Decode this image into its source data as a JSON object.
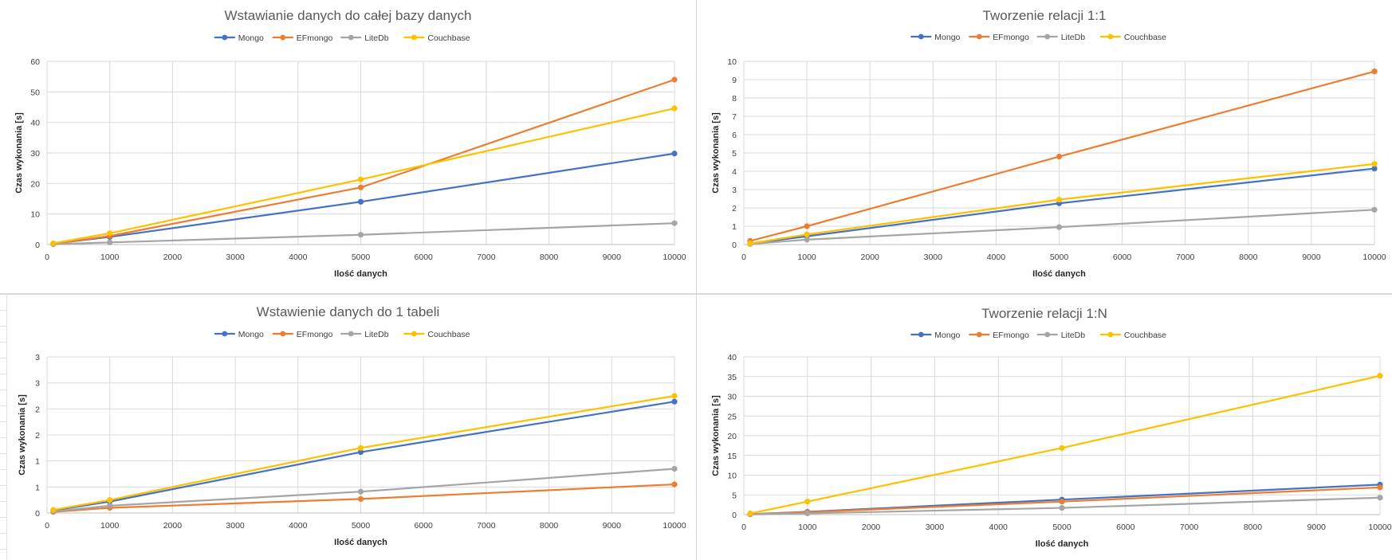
{
  "chart_data": [
    {
      "type": "line",
      "title": "Wstawianie danych do całej bazy danych",
      "xlabel": "Ilość danych",
      "ylabel": "Czas wykonania [s]",
      "x": [
        100,
        1000,
        5000,
        10000
      ],
      "x_ticks": [
        "0",
        "1000",
        "2000",
        "3000",
        "4000",
        "5000",
        "6000",
        "7000",
        "8000",
        "9000",
        "10000"
      ],
      "xlim": [
        0,
        10000
      ],
      "ylim": [
        0,
        60
      ],
      "y_ticks": [
        "0",
        "10",
        "20",
        "30",
        "40",
        "50",
        "60"
      ],
      "grid": true,
      "legend_position": "top",
      "series": [
        {
          "name": "Mongo",
          "color": "#4472C4",
          "values": [
            0.3,
            2.5,
            14,
            29.8
          ]
        },
        {
          "name": "EFmongo",
          "color": "#ED7D31",
          "values": [
            0.3,
            2.8,
            18.7,
            54
          ]
        },
        {
          "name": "LiteDb",
          "color": "#A5A5A5",
          "values": [
            0.1,
            0.7,
            3.2,
            7
          ]
        },
        {
          "name": "Couchbase",
          "color": "#FFC000",
          "values": [
            0.4,
            3.7,
            21.3,
            44.6
          ]
        }
      ]
    },
    {
      "type": "line",
      "title": "Tworzenie relacji 1:1",
      "xlabel": "Ilość danych",
      "ylabel": "Czas wykonania [s]",
      "x": [
        100,
        1000,
        5000,
        10000
      ],
      "x_ticks": [
        "0",
        "1000",
        "2000",
        "3000",
        "4000",
        "5000",
        "6000",
        "7000",
        "8000",
        "9000",
        "10000"
      ],
      "xlim": [
        0,
        10000
      ],
      "ylim": [
        0,
        10
      ],
      "y_ticks": [
        "0",
        "1",
        "2",
        "3",
        "4",
        "5",
        "6",
        "7",
        "8",
        "9",
        "10"
      ],
      "grid": true,
      "legend_position": "top",
      "series": [
        {
          "name": "Mongo",
          "color": "#4472C4",
          "values": [
            0.05,
            0.45,
            2.25,
            4.15
          ]
        },
        {
          "name": "EFmongo",
          "color": "#ED7D31",
          "values": [
            0.2,
            1.0,
            4.8,
            9.45
          ]
        },
        {
          "name": "LiteDb",
          "color": "#A5A5A5",
          "values": [
            0.03,
            0.27,
            0.95,
            1.9
          ]
        },
        {
          "name": "Couchbase",
          "color": "#FFC000",
          "values": [
            0.06,
            0.55,
            2.45,
            4.4
          ]
        }
      ]
    },
    {
      "type": "line",
      "title": "Wstawienie danych do 1 tabeli",
      "xlabel": "Ilość danych",
      "ylabel": "Czas wykonania [s]",
      "x": [
        100,
        1000,
        5000,
        10000
      ],
      "x_ticks": [
        "0",
        "1000",
        "2000",
        "3000",
        "4000",
        "5000",
        "6000",
        "7000",
        "8000",
        "9000",
        "10000"
      ],
      "xlim": [
        0,
        10000
      ],
      "ylim": [
        0,
        3
      ],
      "y_ticks": [
        "0",
        "1",
        "1",
        "2",
        "2",
        "3",
        "3"
      ],
      "grid": true,
      "legend_position": "top",
      "series": [
        {
          "name": "Mongo",
          "color": "#4472C4",
          "values": [
            0.05,
            0.22,
            1.17,
            2.14
          ]
        },
        {
          "name": "EFmongo",
          "color": "#ED7D31",
          "values": [
            0.02,
            0.1,
            0.27,
            0.55
          ]
        },
        {
          "name": "LiteDb",
          "color": "#A5A5A5",
          "values": [
            0.03,
            0.14,
            0.41,
            0.85
          ]
        },
        {
          "name": "Couchbase",
          "color": "#FFC000",
          "values": [
            0.06,
            0.25,
            1.25,
            2.25
          ]
        }
      ]
    },
    {
      "type": "line",
      "title": "Tworzenie relacji 1:N",
      "xlabel": "Ilość danych",
      "ylabel": "Czas wykonania [s]",
      "x": [
        100,
        1000,
        5000,
        10000
      ],
      "x_ticks": [
        "0",
        "1000",
        "2000",
        "3000",
        "4000",
        "5000",
        "6000",
        "7000",
        "8000",
        "9000",
        "10000"
      ],
      "xlim": [
        0,
        10000
      ],
      "ylim": [
        0,
        40
      ],
      "y_ticks": [
        "0",
        "5",
        "10",
        "15",
        "20",
        "25",
        "30",
        "35",
        "40"
      ],
      "grid": true,
      "legend_position": "top",
      "series": [
        {
          "name": "Mongo",
          "color": "#4472C4",
          "values": [
            0.1,
            0.7,
            3.8,
            7.6
          ]
        },
        {
          "name": "EFmongo",
          "color": "#ED7D31",
          "values": [
            0.1,
            0.6,
            3.3,
            6.9
          ]
        },
        {
          "name": "LiteDb",
          "color": "#A5A5A5",
          "values": [
            0.05,
            0.3,
            1.7,
            4.3
          ]
        },
        {
          "name": "Couchbase",
          "color": "#FFC000",
          "values": [
            0.3,
            3.3,
            16.9,
            35.2
          ]
        }
      ]
    }
  ]
}
